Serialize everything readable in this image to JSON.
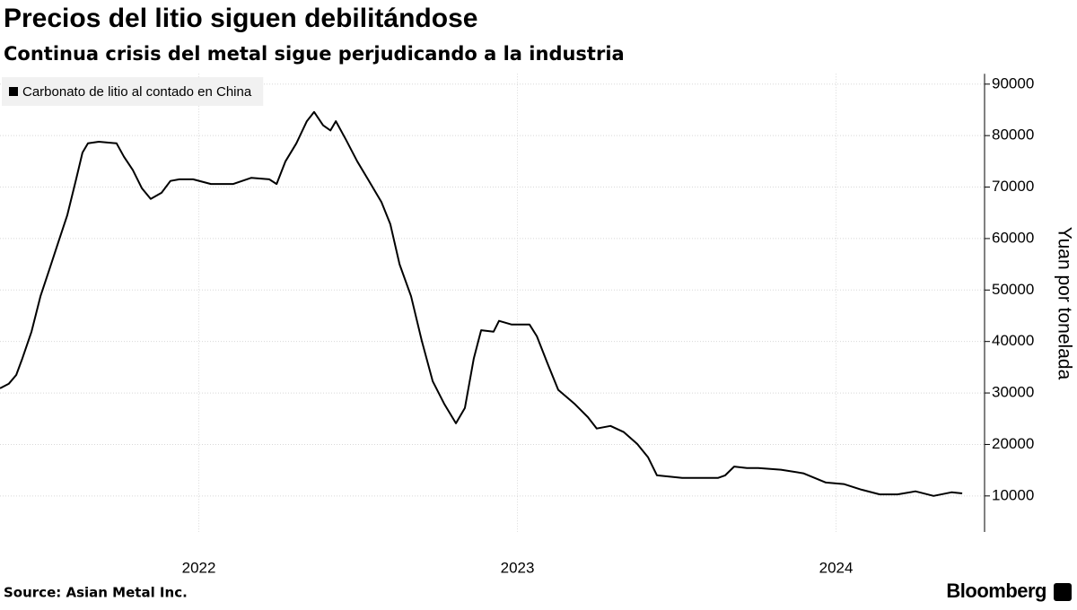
{
  "chart_data": {
    "type": "line",
    "title": "Precios del litio siguen debilitándose",
    "subtitle": "Continua crisis del metal sigue perjudicando a la industria",
    "y_axis_label": "Yuan por tonelada",
    "source": "Source: Asian Metal Inc.",
    "brand": "Bloomberg",
    "x": [
      2021.876,
      2021.904,
      2021.927,
      2021.946,
      2021.975,
      2022.003,
      2022.031,
      2022.059,
      2022.087,
      2022.115,
      2022.135,
      2022.152,
      2022.186,
      2022.242,
      2022.265,
      2022.293,
      2022.321,
      2022.349,
      2022.383,
      2022.411,
      2022.439,
      2022.482,
      2022.538,
      2022.608,
      2022.665,
      2022.721,
      2022.744,
      2022.772,
      2022.806,
      2022.839,
      2022.862,
      2022.89,
      2022.913,
      2022.93,
      2022.961,
      2022.997,
      2023.031,
      2023.073,
      2023.101,
      2023.13,
      2023.166,
      2023.2,
      2023.234,
      2023.27,
      2023.307,
      2023.335,
      2023.363,
      2023.386,
      2023.425,
      2023.442,
      2023.482,
      2023.538,
      2023.561,
      2023.594,
      2023.628,
      2023.679,
      2023.721,
      2023.749,
      2023.792,
      2023.834,
      2023.876,
      2023.91,
      2023.938,
      2024.017,
      2024.13,
      2024.152,
      2024.18,
      2024.22,
      2024.256,
      2024.327,
      2024.397,
      2024.468,
      2024.524,
      2024.58,
      2024.637,
      2024.693,
      2024.749,
      2024.806,
      2024.862,
      2024.896
    ],
    "series": [
      {
        "name": "Carbonato de litio al contado en China",
        "color": "#000000",
        "values": [
          30900,
          31800,
          33500,
          36700,
          41900,
          48800,
          54000,
          59300,
          64500,
          71500,
          76700,
          78500,
          78800,
          78500,
          75900,
          73300,
          69800,
          67700,
          68900,
          71200,
          71500,
          71500,
          70600,
          70600,
          71800,
          71500,
          70600,
          75000,
          78500,
          82800,
          84600,
          82000,
          81000,
          82800,
          79300,
          75000,
          71500,
          67100,
          62800,
          55000,
          48800,
          40100,
          32300,
          27900,
          24100,
          27100,
          36700,
          42200,
          41900,
          44000,
          43300,
          43300,
          41000,
          35800,
          30600,
          27900,
          25300,
          23100,
          23600,
          22400,
          20100,
          17500,
          14000,
          13500,
          13500,
          14000,
          15700,
          15400,
          15400,
          15100,
          14400,
          12600,
          12300,
          11200,
          10300,
          10300,
          10900,
          10000,
          10700,
          10500
        ]
      }
    ],
    "xlim": [
      2021.876,
      2024.966
    ],
    "xticks": [
      {
        "value": 2022.5,
        "label": "2022"
      },
      {
        "value": 2023.5,
        "label": "2023"
      },
      {
        "value": 2024.5,
        "label": "2024"
      }
    ],
    "ylim": [
      3000,
      92000
    ],
    "yticks": [
      10000,
      20000,
      30000,
      40000,
      50000,
      60000,
      70000,
      80000,
      90000
    ],
    "y_axis_side": "right",
    "grid": true,
    "legend": "top-left"
  }
}
